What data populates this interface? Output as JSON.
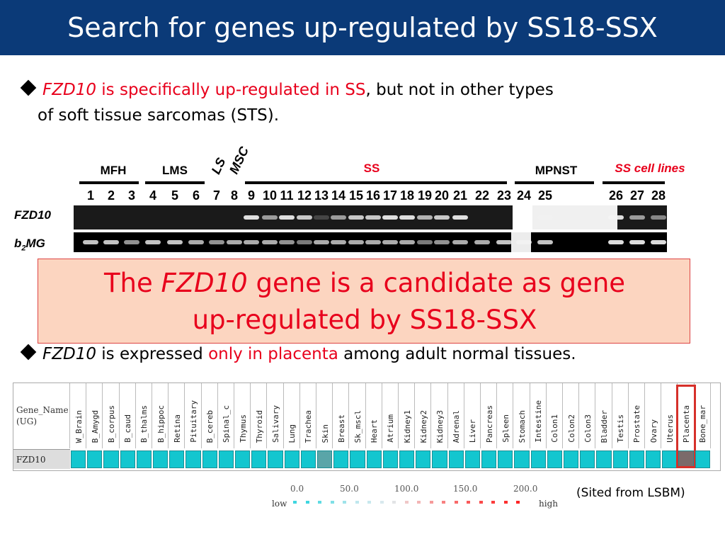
{
  "title": "Search for genes up-regulated by SS18-SSX",
  "bullet1": {
    "gene": "FZD10",
    "red_rest": " is specifically up-regulated in SS",
    "black_line1": ", but not in other types",
    "line2": "of soft tissue sarcomas (STS)."
  },
  "gel": {
    "groups": [
      "MFH",
      "LMS",
      "LS",
      "MSC",
      "SS",
      "MPNST",
      "SS cell lines"
    ],
    "lanes": [
      "1",
      "2",
      "3",
      "4",
      "5",
      "6",
      "7",
      "8",
      "9",
      "10",
      "11",
      "12",
      "13",
      "14",
      "15",
      "16",
      "17",
      "18",
      "19",
      "20",
      "21",
      "22",
      "23",
      "24",
      "25",
      "26",
      "27",
      "28"
    ],
    "rows": [
      "FZD10",
      "b2MG"
    ],
    "fzd10_intensity": [
      0,
      0,
      0,
      0,
      0,
      0,
      0,
      0,
      0.9,
      0.6,
      0.9,
      0.8,
      0.2,
      0.6,
      0.8,
      0.8,
      0.9,
      0.9,
      0.7,
      0.8,
      0.9,
      0,
      0,
      0,
      0.2,
      0.9,
      0.6,
      0.5
    ],
    "b2mg_intensity": [
      0.8,
      0.8,
      0.6,
      0.8,
      0.8,
      0.7,
      0.6,
      0.7,
      0.7,
      0.7,
      0.6,
      0.5,
      0.7,
      0.7,
      0.7,
      0.7,
      0.7,
      0.7,
      0.5,
      0.6,
      0.7,
      0.7,
      0.8,
      0.8,
      0.8,
      0.9,
      0.9,
      0.9
    ]
  },
  "callout": {
    "line1_pre": "The ",
    "line1_gene": "FZD10",
    "line1_post": " gene is a candidate as gene",
    "line2": "up-regulated by SS18-SSX"
  },
  "bullet2": {
    "gene": "FZD10",
    "black1": " is expressed ",
    "red": "only in placenta",
    "black2": " among adult normal tissues."
  },
  "table": {
    "gene_header": "Gene_Name (UG)",
    "gene_name": "FZD10",
    "tissues": [
      "W_Brain",
      "B_Amygd",
      "B_corpus",
      "B_caud",
      "B_thalms",
      "B_hippoc",
      "Retina",
      "Pituitary",
      "B_cereb",
      "Spinal_c",
      "Thymus",
      "Thyroid",
      "Salivary",
      "Lung",
      "Trachea",
      "Skin",
      "Breast",
      "Sk_mscl",
      "Heart",
      "Atrium",
      "Kidney1",
      "Kidney2",
      "Kidney3",
      "Adrenal",
      "Liver",
      "Pancreas",
      "Spleen",
      "Stomach",
      "Intestine",
      "Colon1",
      "Colon2",
      "Colon3",
      "Bladder",
      "Testis",
      "Prostate",
      "Ovary",
      "Uterus",
      "Placenta",
      "Bone_mar"
    ],
    "highlighted": "Placenta",
    "cell_colors": [
      "#13c6cf",
      "#13c6cf",
      "#13c6cf",
      "#13c6cf",
      "#13c6cf",
      "#13c6cf",
      "#13c6cf",
      "#13c6cf",
      "#13c6cf",
      "#13c6cf",
      "#13c6cf",
      "#13c6cf",
      "#13c6cf",
      "#13c6cf",
      "#13c6cf",
      "#5aa5a8",
      "#13c6cf",
      "#13c6cf",
      "#13c6cf",
      "#13c6cf",
      "#13c6cf",
      "#13c6cf",
      "#13c6cf",
      "#13c6cf",
      "#13c6cf",
      "#13c6cf",
      "#13c6cf",
      "#13c6cf",
      "#13c6cf",
      "#13c6cf",
      "#13c6cf",
      "#13c6cf",
      "#13c6cf",
      "#13c6cf",
      "#13c6cf",
      "#13c6cf",
      "#13c6cf",
      "#7b6a6a",
      "#13c6cf"
    ]
  },
  "legend": {
    "ticks": [
      "0.0",
      "50.0",
      "100.0",
      "150.0",
      "200.0"
    ],
    "low": "low",
    "high": "high",
    "colors": [
      "#3fd6e0",
      "#3fd6e0",
      "#5fdbe3",
      "#7fdfe6",
      "#9fe3ea",
      "#bfe7ee",
      "#c8e8ee",
      "#d8e9ee",
      "#e2e4e6",
      "#f0c8c8",
      "#f3b5b5",
      "#f59a9a",
      "#f78080",
      "#f86a6a",
      "#f95a5a",
      "#fa4a4a",
      "#fb3c3c",
      "#fc3030",
      "#fd2525"
    ]
  },
  "credit": "(Sited from LSBM)"
}
